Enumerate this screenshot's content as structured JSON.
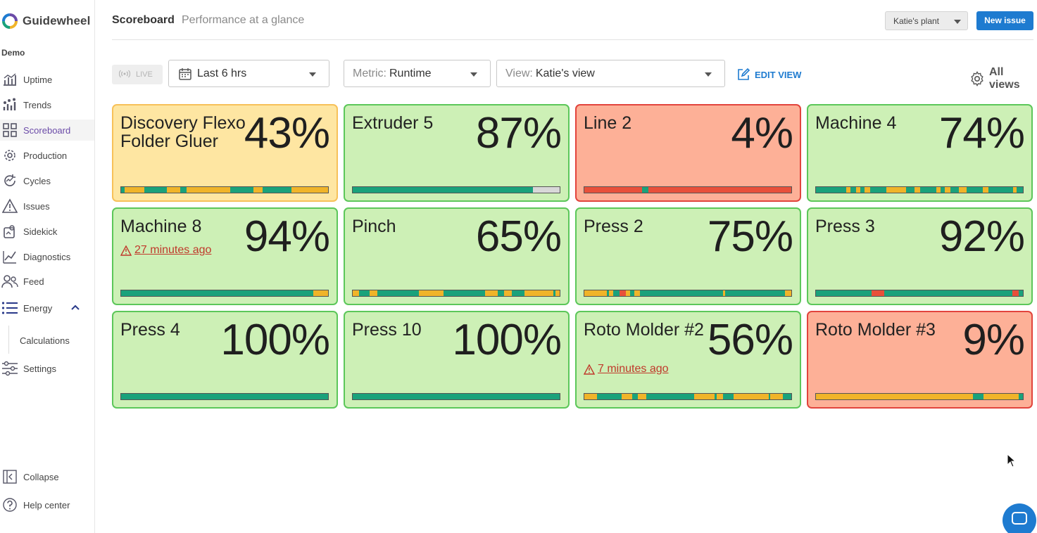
{
  "app": {
    "name": "Guidewheel",
    "org": "Demo"
  },
  "sidebar": {
    "items": [
      {
        "label": "Uptime",
        "icon": "uptime-icon"
      },
      {
        "label": "Trends",
        "icon": "trends-icon"
      },
      {
        "label": "Scoreboard",
        "icon": "grid-icon",
        "active": true
      },
      {
        "label": "Production",
        "icon": "gear-icon"
      },
      {
        "label": "Cycles",
        "icon": "cycles-icon"
      },
      {
        "label": "Issues",
        "icon": "warning-icon"
      },
      {
        "label": "Sidekick",
        "icon": "sidekick-icon"
      },
      {
        "label": "Diagnostics",
        "icon": "diagnostics-icon"
      },
      {
        "label": "Feed",
        "icon": "people-icon"
      },
      {
        "label": "Energy",
        "icon": "list-icon",
        "expanded": true
      },
      {
        "label": "Calculations",
        "icon": ""
      },
      {
        "label": "Settings",
        "icon": "sliders-icon"
      }
    ],
    "collapse_label": "Collapse",
    "help_label": "Help center"
  },
  "header": {
    "title": "Scoreboard",
    "subtitle": "Performance at a glance",
    "plant": "Katie's plant",
    "new_issue": "New issue"
  },
  "toolbar": {
    "live": "LIVE",
    "time_range": "Last 6 hrs",
    "metric_prefix": "Metric:",
    "metric": "Runtime",
    "view_prefix": "View:",
    "view": "Katie's view",
    "edit_view": "EDIT VIEW",
    "all_views": "All views"
  },
  "colors": {
    "green": "#1aa27b",
    "yellow": "#f0b429",
    "red": "#e8503a",
    "grey": "#d8d8d8",
    "accent": "#1e7bd0"
  },
  "tiles": [
    {
      "name": "Discovery Flexo Folder Gluer",
      "pct": "43%",
      "status": "yellow",
      "bar": [
        [
          "g",
          2
        ],
        [
          "y",
          10
        ],
        [
          "g",
          12
        ],
        [
          "y",
          7
        ],
        [
          "g",
          3
        ],
        [
          "y",
          23
        ],
        [
          "g",
          12
        ],
        [
          "y",
          5
        ],
        [
          "g",
          15
        ],
        [
          "y",
          19
        ]
      ]
    },
    {
      "name": "Extruder 5",
      "pct": "87%",
      "status": "green",
      "bar": [
        [
          "g",
          87
        ],
        [
          "x",
          13
        ]
      ]
    },
    {
      "name": "Line 2",
      "pct": "4%",
      "status": "red",
      "bar": [
        [
          "r",
          28
        ],
        [
          "g",
          3
        ],
        [
          "r",
          69
        ]
      ]
    },
    {
      "name": "Machine 4",
      "pct": "74%",
      "status": "green",
      "bar": [
        [
          "g",
          15
        ],
        [
          "y",
          2
        ],
        [
          "g",
          3
        ],
        [
          "y",
          2
        ],
        [
          "g",
          2
        ],
        [
          "y",
          3
        ],
        [
          "g",
          8
        ],
        [
          "y",
          10
        ],
        [
          "g",
          4
        ],
        [
          "y",
          3
        ],
        [
          "g",
          8
        ],
        [
          "y",
          2
        ],
        [
          "g",
          2
        ],
        [
          "y",
          3
        ],
        [
          "g",
          4
        ],
        [
          "y",
          4
        ],
        [
          "g",
          8
        ],
        [
          "y",
          3
        ],
        [
          "g",
          12
        ],
        [
          "y",
          2
        ],
        [
          "g",
          3
        ]
      ]
    },
    {
      "name": "Machine 8",
      "pct": "94%",
      "status": "green",
      "warn": "27 minutes ago",
      "bar": [
        [
          "g",
          93
        ],
        [
          "y",
          7
        ]
      ]
    },
    {
      "name": "Pinch",
      "pct": "65%",
      "status": "green",
      "bar": [
        [
          "y",
          3
        ],
        [
          "g",
          5
        ],
        [
          "y",
          4
        ],
        [
          "g",
          20
        ],
        [
          "y",
          12
        ],
        [
          "g",
          20
        ],
        [
          "y",
          6
        ],
        [
          "g",
          3
        ],
        [
          "y",
          4
        ],
        [
          "g",
          6
        ],
        [
          "y",
          14
        ],
        [
          "g",
          1
        ],
        [
          "y",
          2
        ]
      ]
    },
    {
      "name": "Press 2",
      "pct": "75%",
      "status": "green",
      "bar": [
        [
          "y",
          11
        ],
        [
          "g",
          1
        ],
        [
          "y",
          2
        ],
        [
          "g",
          3
        ],
        [
          "r",
          3
        ],
        [
          "y",
          2
        ],
        [
          "g",
          2
        ],
        [
          "y",
          3
        ],
        [
          "g",
          40
        ],
        [
          "y",
          1
        ],
        [
          "g",
          29
        ],
        [
          "y",
          3
        ]
      ]
    },
    {
      "name": "Press 3",
      "pct": "92%",
      "status": "green",
      "bar": [
        [
          "g",
          27
        ],
        [
          "r",
          6
        ],
        [
          "g",
          62
        ],
        [
          "r",
          3
        ],
        [
          "g",
          2
        ]
      ]
    },
    {
      "name": "Press 4",
      "pct": "100%",
      "status": "green",
      "bar": [
        [
          "g",
          100
        ]
      ]
    },
    {
      "name": "Press 10",
      "pct": "100%",
      "status": "green",
      "bar": [
        [
          "g",
          100
        ]
      ]
    },
    {
      "name": "Roto Molder #2",
      "pct": "56%",
      "status": "green",
      "warn": "7 minutes ago",
      "bar": [
        [
          "y",
          6
        ],
        [
          "g",
          12
        ],
        [
          "y",
          5
        ],
        [
          "g",
          3
        ],
        [
          "y",
          4
        ],
        [
          "g",
          23
        ],
        [
          "y",
          10
        ],
        [
          "g",
          1
        ],
        [
          "y",
          3
        ],
        [
          "g",
          5
        ],
        [
          "y",
          17
        ],
        [
          "g",
          1
        ],
        [
          "y",
          6
        ]
      ]
    },
    {
      "name": "Roto Molder #3",
      "pct": "9%",
      "status": "red",
      "bar": [
        [
          "y",
          76
        ],
        [
          "g",
          5
        ],
        [
          "y",
          17
        ],
        [
          "g",
          2
        ]
      ]
    }
  ]
}
